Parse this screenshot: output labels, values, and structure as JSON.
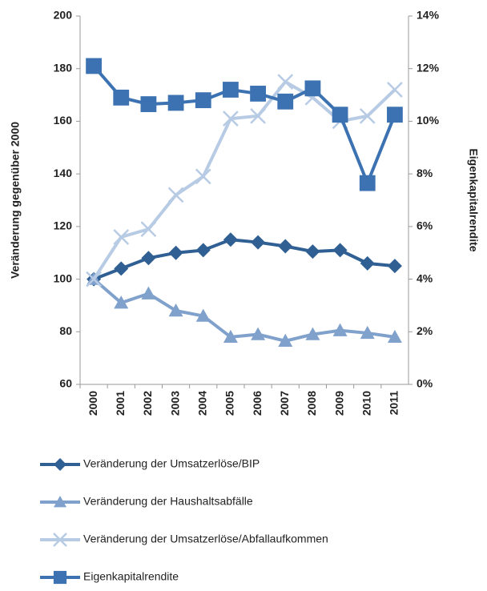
{
  "chart_data": {
    "type": "line",
    "categories": [
      "2000",
      "2001",
      "2002",
      "2003",
      "2004",
      "2005",
      "2006",
      "2007",
      "2008",
      "2009",
      "2010",
      "2011"
    ],
    "ylabel": "Veränderung gegenüber 2000",
    "y2label": "Eigenkapitalrendite",
    "ylim": [
      60,
      200
    ],
    "yticks": [
      60,
      80,
      100,
      120,
      140,
      160,
      180,
      200
    ],
    "y2lim": [
      0,
      14
    ],
    "y2ticks": [
      {
        "value": 0,
        "label": "0%"
      },
      {
        "value": 2,
        "label": "2%"
      },
      {
        "value": 4,
        "label": "4%"
      },
      {
        "value": 6,
        "label": "6%"
      },
      {
        "value": 8,
        "label": "8%"
      },
      {
        "value": 10,
        "label": "10%"
      },
      {
        "value": 12,
        "label": "12%"
      },
      {
        "value": 14,
        "label": "14%"
      }
    ],
    "grid": false,
    "legend": "bottom",
    "series": [
      {
        "name": "Veränderung der Umsatzerlöse/BIP",
        "color": "#2f5f93",
        "marker": "diamond",
        "values": [
          100,
          104,
          108,
          110,
          111,
          115,
          114,
          112.5,
          110.5,
          111,
          106,
          105
        ]
      },
      {
        "name": "Veränderung der Haushaltsabfälle",
        "color": "#7fa1cc",
        "marker": "triangle",
        "values": [
          100,
          91,
          94.5,
          88,
          86,
          78,
          79,
          76.5,
          79,
          80.5,
          79.5,
          78
        ]
      },
      {
        "name": "Veränderung der Umsatzerlöse/Abfallaufkommen",
        "color": "#b8cbe4",
        "marker": "x",
        "values": [
          100,
          116,
          119,
          132,
          139,
          161,
          162,
          175,
          169,
          160,
          162,
          172
        ]
      },
      {
        "name": "Eigenkapitalrendite",
        "color": "#3c72b1",
        "marker": "square",
        "axis": "y2",
        "values": [
          12.1,
          10.9,
          10.65,
          10.7,
          10.8,
          11.2,
          11.05,
          10.75,
          11.25,
          10.25,
          7.65,
          10.25
        ]
      }
    ]
  }
}
